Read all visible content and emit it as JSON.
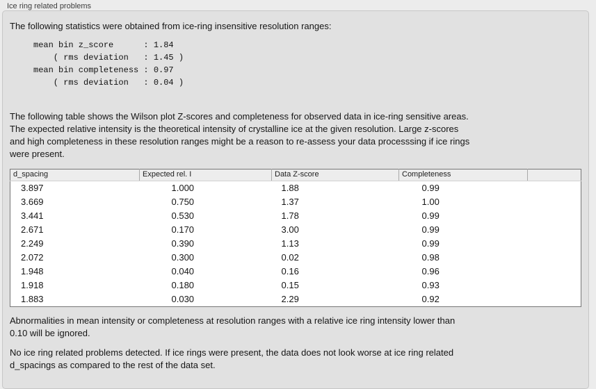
{
  "group": {
    "label": "Ice ring related problems"
  },
  "intro": "The following statistics were obtained from ice-ring insensitive resolution ranges:",
  "stats_block": {
    "lines": [
      "mean bin z_score      : 1.84",
      "    ( rms deviation   : 1.45 )",
      "mean bin completeness : 0.97",
      "    ( rms deviation   : 0.04 )"
    ]
  },
  "table_note_lines": [
    "The following table shows the Wilson plot Z-scores and completeness for observed data in ice-ring sensitive areas.",
    "The expected relative intensity is the theoretical intensity of crystalline ice at the given resolution. Large z-scores",
    "and high completeness in these resolution ranges might be a reason to re-assess your data processsing if ice rings",
    "were present."
  ],
  "table": {
    "columns": [
      "d_spacing",
      "Expected rel. I",
      "Data Z-score",
      "Completeness",
      ""
    ],
    "rows": [
      [
        "3.897",
        "1.000",
        "1.88",
        "0.99",
        ""
      ],
      [
        "3.669",
        "0.750",
        "1.37",
        "1.00",
        ""
      ],
      [
        "3.441",
        "0.530",
        "1.78",
        "0.99",
        ""
      ],
      [
        "2.671",
        "0.170",
        "3.00",
        "0.99",
        ""
      ],
      [
        "2.249",
        "0.390",
        "1.13",
        "0.99",
        ""
      ],
      [
        "2.072",
        "0.300",
        "0.02",
        "0.98",
        ""
      ],
      [
        "1.948",
        "0.040",
        "0.16",
        "0.96",
        ""
      ],
      [
        "1.918",
        "0.180",
        "0.15",
        "0.93",
        ""
      ],
      [
        "1.883",
        "0.030",
        "2.29",
        "0.92",
        ""
      ]
    ]
  },
  "footnote_lines": [
    "Abnormalities in mean intensity or completeness at resolution ranges with a relative ice ring intensity lower than",
    "0.10 will be ignored."
  ],
  "conclusion_lines": [
    "No ice ring related problems detected. If ice rings were present, the data does not look worse at ice ring related",
    "d_spacings as compared to the rest of the data set."
  ],
  "colors": {
    "page_background": "#ececec",
    "groupbox_background": "#e1e1e1",
    "groupbox_border": "#c6c6c6",
    "table_border": "#767676",
    "table_header_background": "#ededed",
    "text": "#151515"
  }
}
